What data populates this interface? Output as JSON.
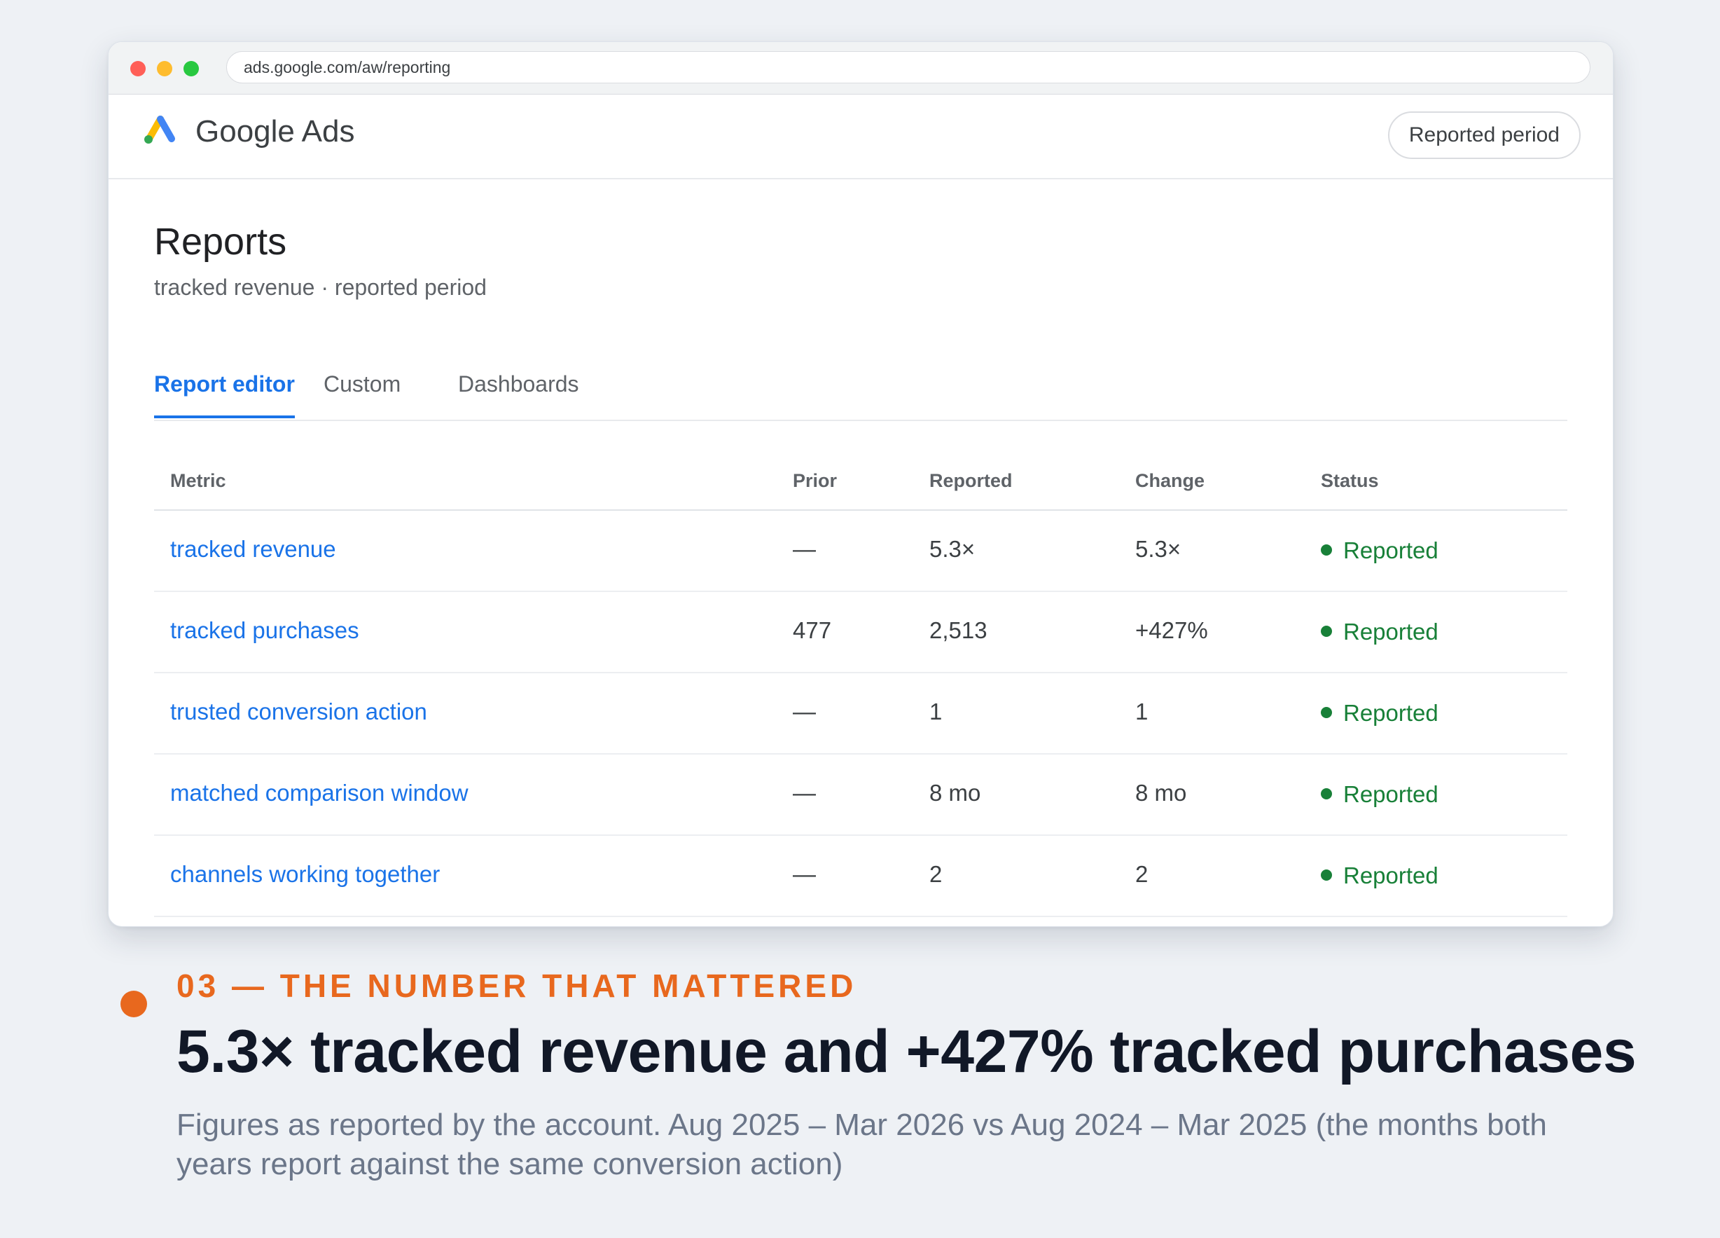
{
  "browser": {
    "url": "ads.google.com/aw/reporting"
  },
  "header": {
    "app_title": "Google Ads",
    "period_button": "Reported period",
    "logo_colors": {
      "yellow": "#fbbc04",
      "blue": "#4285f4",
      "green": "#34a853"
    }
  },
  "page": {
    "title": "Reports",
    "subtitle": "tracked revenue · reported period"
  },
  "tabs": [
    {
      "label": "Report editor",
      "active": true
    },
    {
      "label": "Custom",
      "active": false
    },
    {
      "label": "Dashboards",
      "active": false
    }
  ],
  "table": {
    "headers": {
      "metric": "Metric",
      "prior": "Prior",
      "reported": "Reported",
      "change": "Change",
      "status": "Status"
    },
    "rows": [
      {
        "metric": "tracked revenue",
        "prior": "—",
        "reported": "5.3×",
        "change": "5.3×",
        "status": "Reported"
      },
      {
        "metric": "tracked purchases",
        "prior": "477",
        "reported": "2,513",
        "change": "+427%",
        "status": "Reported"
      },
      {
        "metric": "trusted conversion action",
        "prior": "—",
        "reported": "1",
        "change": "1",
        "status": "Reported"
      },
      {
        "metric": "matched comparison window",
        "prior": "—",
        "reported": "8 mo",
        "change": "8 mo",
        "status": "Reported"
      },
      {
        "metric": "channels working together",
        "prior": "—",
        "reported": "2",
        "change": "2",
        "status": "Reported"
      }
    ]
  },
  "footer": {
    "kicker": "03 — THE NUMBER THAT MATTERED",
    "headline": "5.3× tracked revenue and +427% tracked purchases",
    "caption": "Figures as reported by the account. Aug 2025 – Mar 2026 vs Aug 2024 – Mar 2025 (the months both years report against the same conversion action)",
    "accent_color": "#e8681e"
  }
}
